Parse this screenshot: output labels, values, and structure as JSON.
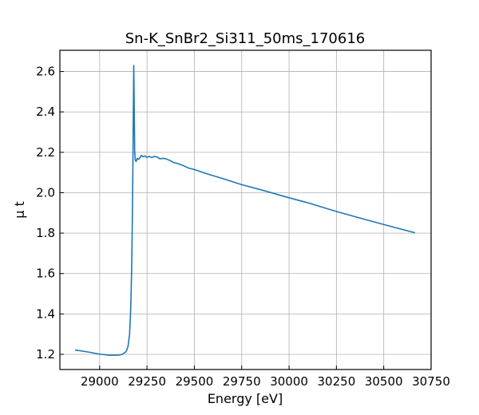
{
  "chart_data": {
    "type": "line",
    "title": "Sn-K_SnBr2_Si311_50ms_170616",
    "xlabel": "Energy [eV]",
    "ylabel": "μ t",
    "xlim": [
      28790,
      30750
    ],
    "ylim": [
      1.125,
      2.705
    ],
    "xticks": [
      29000,
      29250,
      29500,
      29750,
      30000,
      30250,
      30500,
      30750
    ],
    "yticks": [
      1.2,
      1.4,
      1.6,
      1.8,
      2.0,
      2.2,
      2.4,
      2.6
    ],
    "xtick_labels": [
      "29000",
      "29250",
      "29500",
      "29750",
      "30000",
      "30250",
      "30500",
      "30750"
    ],
    "ytick_labels": [
      "1.2",
      "1.4",
      "1.6",
      "1.8",
      "2.0",
      "2.2",
      "2.4",
      "2.6"
    ],
    "grid": true,
    "series": [
      {
        "color": "#1f77b4",
        "points": [
          [
            28870,
            1.222
          ],
          [
            28950,
            1.21
          ],
          [
            29000,
            1.201
          ],
          [
            29050,
            1.196
          ],
          [
            29100,
            1.196
          ],
          [
            29120,
            1.2
          ],
          [
            29140,
            1.214
          ],
          [
            29150,
            1.24
          ],
          [
            29158,
            1.3
          ],
          [
            29163,
            1.4
          ],
          [
            29166,
            1.5
          ],
          [
            29169,
            1.62
          ],
          [
            29171,
            1.75
          ],
          [
            29173,
            1.9
          ],
          [
            29175,
            2.08
          ],
          [
            29177,
            2.3
          ],
          [
            29179,
            2.52
          ],
          [
            29180,
            2.63
          ],
          [
            29181,
            2.56
          ],
          [
            29183,
            2.38
          ],
          [
            29185,
            2.21
          ],
          [
            29188,
            2.16
          ],
          [
            29193,
            2.155
          ],
          [
            29198,
            2.17
          ],
          [
            29205,
            2.165
          ],
          [
            29212,
            2.172
          ],
          [
            29220,
            2.185
          ],
          [
            29228,
            2.178
          ],
          [
            29238,
            2.182
          ],
          [
            29250,
            2.175
          ],
          [
            29262,
            2.18
          ],
          [
            29275,
            2.174
          ],
          [
            29290,
            2.18
          ],
          [
            29305,
            2.176
          ],
          [
            29318,
            2.168
          ],
          [
            29335,
            2.17
          ],
          [
            29350,
            2.168
          ],
          [
            29370,
            2.16
          ],
          [
            29390,
            2.15
          ],
          [
            29410,
            2.145
          ],
          [
            29440,
            2.135
          ],
          [
            29470,
            2.122
          ],
          [
            29500,
            2.115
          ],
          [
            29540,
            2.102
          ],
          [
            29580,
            2.09
          ],
          [
            29650,
            2.07
          ],
          [
            29750,
            2.04
          ],
          [
            29850,
            2.015
          ],
          [
            30000,
            1.975
          ],
          [
            30100,
            1.95
          ],
          [
            30250,
            1.907
          ],
          [
            30400,
            1.868
          ],
          [
            30550,
            1.83
          ],
          [
            30665,
            1.802
          ]
        ]
      }
    ]
  }
}
